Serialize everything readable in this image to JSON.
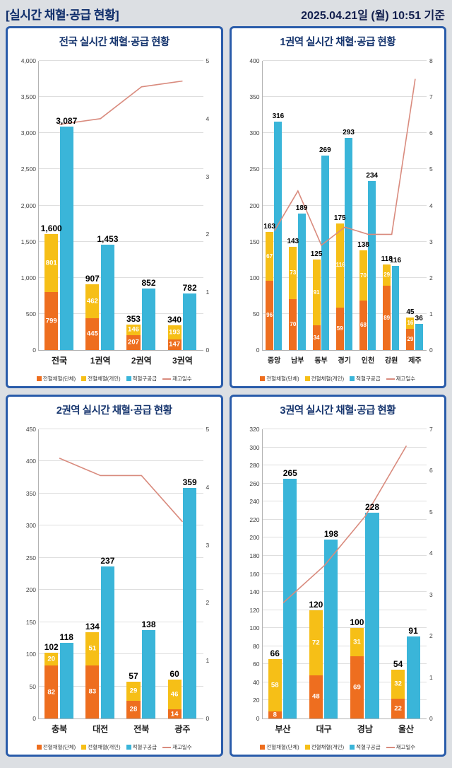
{
  "header": {
    "title": "[실시간 채혈·공급 현황]",
    "datetime": "2025.04.21일 (월) 10:51 기준"
  },
  "colors": {
    "orange": "#ee6e1f",
    "yellow": "#f6bf17",
    "cyan": "#3ab5d9",
    "line": "#d98b7e",
    "panel_border": "#2a5caa",
    "title_text": "#16356e",
    "header_text": "#0f2e6b"
  },
  "legend_labels": [
    "전혈채혈(단체)",
    "전혈채혈(개인)",
    "적혈구공급",
    "재고일수"
  ],
  "chart_data": [
    {
      "type": "bar",
      "title": "전국 실시간 채혈·공급 현황",
      "categories": [
        "전국",
        "1권역",
        "2권역",
        "3권역"
      ],
      "series": [
        {
          "name": "전혈채혈(단체)",
          "kind": "bar-stack",
          "color_key": "orange",
          "values": [
            799,
            445,
            207,
            147
          ]
        },
        {
          "name": "전혈채혈(개인)",
          "kind": "bar-stack",
          "color_key": "yellow",
          "values": [
            801,
            462,
            146,
            193
          ]
        },
        {
          "name": "적혈구공급",
          "kind": "bar",
          "color_key": "cyan",
          "values": [
            3087,
            1453,
            852,
            782
          ]
        },
        {
          "name": "재고일수",
          "kind": "line",
          "color_key": "line",
          "values": [
            3.9,
            4.0,
            4.55,
            4.65
          ]
        }
      ],
      "stack_totals": [
        1600,
        907,
        353,
        340
      ],
      "left_axis": {
        "min": 0,
        "max": 4000,
        "step": 500
      },
      "right_axis": {
        "min": 0,
        "max": 5,
        "step": 1
      }
    },
    {
      "type": "bar",
      "title": "1권역 실시간 채혈·공급 현황",
      "categories": [
        "중앙",
        "남부",
        "동부",
        "경기",
        "인천",
        "강원",
        "제주"
      ],
      "series": [
        {
          "name": "전혈채혈(단체)",
          "kind": "bar-stack",
          "color_key": "orange",
          "values": [
            96,
            70,
            34,
            59,
            68,
            89,
            29
          ]
        },
        {
          "name": "전혈채혈(개인)",
          "kind": "bar-stack",
          "color_key": "yellow",
          "values": [
            67,
            73,
            91,
            116,
            70,
            29,
            16
          ]
        },
        {
          "name": "적혈구공급",
          "kind": "bar",
          "color_key": "cyan",
          "values": [
            316,
            189,
            269,
            293,
            234,
            116,
            36
          ]
        },
        {
          "name": "재고일수",
          "kind": "line",
          "color_key": "line",
          "values": [
            3.3,
            4.4,
            2.9,
            3.4,
            3.2,
            3.2,
            7.5
          ]
        }
      ],
      "stack_totals": [
        163,
        143,
        125,
        175,
        138,
        118,
        45
      ],
      "left_axis": {
        "min": 0,
        "max": 400,
        "step": 50
      },
      "right_axis": {
        "min": 0,
        "max": 8,
        "step": 1
      }
    },
    {
      "type": "bar",
      "title": "2권역 실시간 채혈·공급 현황",
      "categories": [
        "충북",
        "대전",
        "전북",
        "광주"
      ],
      "series": [
        {
          "name": "전혈채혈(단체)",
          "kind": "bar-stack",
          "color_key": "orange",
          "values": [
            82,
            83,
            28,
            14
          ]
        },
        {
          "name": "전혈채혈(개인)",
          "kind": "bar-stack",
          "color_key": "yellow",
          "values": [
            20,
            51,
            29,
            46
          ]
        },
        {
          "name": "적혈구공급",
          "kind": "bar",
          "color_key": "cyan",
          "values": [
            118,
            237,
            138,
            359
          ]
        },
        {
          "name": "재고일수",
          "kind": "line",
          "color_key": "line",
          "values": [
            4.5,
            4.2,
            4.2,
            3.4
          ]
        }
      ],
      "stack_totals": [
        102,
        134,
        57,
        60
      ],
      "left_axis": {
        "min": 0,
        "max": 450,
        "step": 50
      },
      "right_axis": {
        "min": 0,
        "max": 5,
        "step": 1
      }
    },
    {
      "type": "bar",
      "title": "3권역 실시간 채혈·공급 현황",
      "categories": [
        "부산",
        "대구",
        "경남",
        "울산"
      ],
      "series": [
        {
          "name": "전혈채혈(단체)",
          "kind": "bar-stack",
          "color_key": "orange",
          "values": [
            8,
            48,
            69,
            22
          ]
        },
        {
          "name": "전혈채혈(개인)",
          "kind": "bar-stack",
          "color_key": "yellow",
          "values": [
            58,
            72,
            31,
            32
          ]
        },
        {
          "name": "적혈구공급",
          "kind": "bar",
          "color_key": "cyan",
          "values": [
            265,
            198,
            228,
            91
          ]
        },
        {
          "name": "재고일수",
          "kind": "line",
          "color_key": "line",
          "values": [
            2.8,
            3.7,
            4.9,
            6.6
          ]
        }
      ],
      "stack_totals": [
        66,
        120,
        100,
        54
      ],
      "left_axis": {
        "min": 0,
        "max": 320,
        "step": 20
      },
      "right_axis": {
        "min": 0,
        "max": 7,
        "step": 1
      }
    }
  ]
}
